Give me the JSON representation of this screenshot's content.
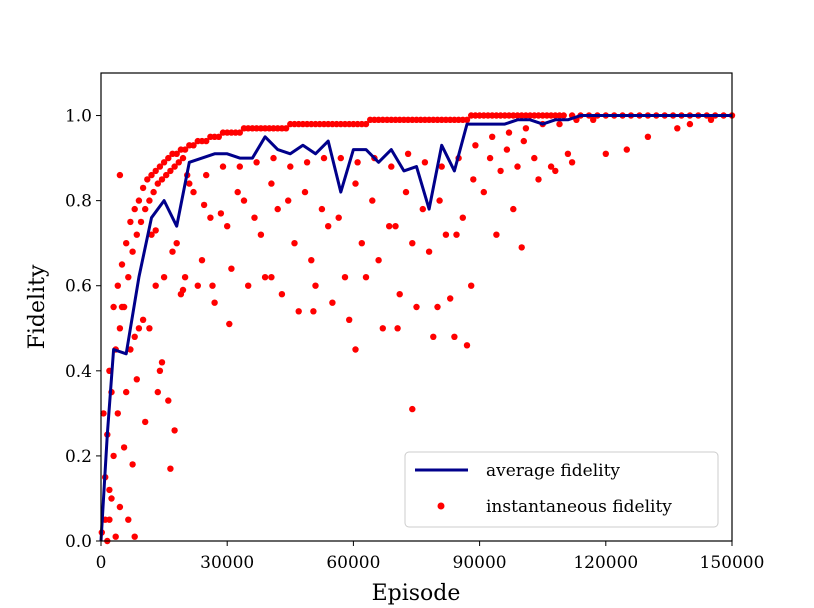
{
  "chart_data": {
    "type": "scatter",
    "title": "",
    "xlabel": "Episode",
    "ylabel": "Fidelity",
    "xlim": [
      0,
      150000
    ],
    "ylim": [
      0,
      1.1
    ],
    "xticks": [
      0,
      30000,
      60000,
      90000,
      120000,
      150000
    ],
    "xtick_labels": [
      "0",
      "30000",
      "60000",
      "90000",
      "120000",
      "150000"
    ],
    "yticks": [
      0,
      0.2,
      0.4,
      0.6,
      0.8,
      1.0
    ],
    "ytick_labels": [
      "0.0",
      "0.2",
      "0.4",
      "0.6",
      "0.8",
      "1.0"
    ],
    "grid": false,
    "legend_position": "lower-right",
    "series": [
      {
        "name": "average fidelity",
        "kind": "line",
        "color": "#00008b",
        "x": [
          0,
          1500,
          3000,
          6000,
          9000,
          12000,
          15000,
          18000,
          21000,
          24000,
          27000,
          30000,
          33000,
          36000,
          39000,
          42000,
          45000,
          48000,
          51000,
          54000,
          57000,
          60000,
          63000,
          66000,
          69000,
          72000,
          75000,
          78000,
          81000,
          84000,
          87000,
          90000,
          93000,
          96000,
          99000,
          102000,
          105000,
          108000,
          111000,
          114000,
          117000,
          120000,
          123000,
          126000,
          129000,
          132000,
          135000,
          138000,
          141000,
          144000,
          147000,
          150000
        ],
        "y": [
          0.0,
          0.25,
          0.45,
          0.44,
          0.62,
          0.76,
          0.8,
          0.74,
          0.89,
          0.9,
          0.91,
          0.91,
          0.9,
          0.9,
          0.95,
          0.92,
          0.91,
          0.93,
          0.91,
          0.94,
          0.82,
          0.92,
          0.92,
          0.89,
          0.92,
          0.87,
          0.88,
          0.78,
          0.93,
          0.87,
          0.98,
          0.98,
          0.98,
          0.98,
          0.99,
          0.99,
          0.98,
          0.99,
          0.99,
          1.0,
          1.0,
          1.0,
          1.0,
          1.0,
          1.0,
          1.0,
          1.0,
          1.0,
          1.0,
          1.0,
          1.0,
          1.0
        ]
      },
      {
        "name": "instantaneous fidelity",
        "kind": "scatter",
        "color": "#ff0000",
        "x": [
          200,
          600,
          1000,
          1500,
          2000,
          2500,
          3000,
          3500,
          4000,
          4500,
          5000,
          5500,
          6000,
          6500,
          7000,
          7500,
          8000,
          8500,
          9000,
          9500,
          10000,
          10500,
          11000,
          11500,
          12000,
          12500,
          13000,
          13500,
          14000,
          14500,
          15000,
          15500,
          16000,
          16500,
          17000,
          17500,
          18000,
          18500,
          19000,
          19500,
          20000,
          21000,
          22000,
          23000,
          24000,
          25000,
          26000,
          27000,
          28000,
          29000,
          30000,
          31000,
          32000,
          33000,
          34000,
          35000,
          36000,
          37000,
          38000,
          39000,
          40000,
          41000,
          42000,
          43000,
          44000,
          45000,
          46000,
          47000,
          48000,
          49000,
          50000,
          51000,
          52000,
          53000,
          54000,
          55000,
          56000,
          57000,
          58000,
          59000,
          60000,
          61000,
          62000,
          63000,
          64000,
          65000,
          66000,
          67000,
          68000,
          69000,
          70000,
          71000,
          72000,
          73000,
          74000,
          75000,
          76000,
          77000,
          78000,
          79000,
          80000,
          81000,
          82000,
          83000,
          84000,
          85000,
          86000,
          87000,
          88000,
          89000,
          90000,
          91000,
          92000,
          93000,
          94000,
          95000,
          96000,
          97000,
          98000,
          99000,
          100000,
          101000,
          102000,
          103000,
          104000,
          105000,
          106000,
          107000,
          108000,
          109000,
          110000,
          112000,
          114000,
          116000,
          118000,
          120000,
          122000,
          124000,
          126000,
          128000,
          130000,
          132000,
          134000,
          136000,
          138000,
          140000,
          142000,
          144000,
          146000,
          148000,
          150000,
          5000,
          8000,
          12000,
          15000,
          18000,
          22000,
          26000,
          30000,
          34000,
          38000,
          42000,
          46000,
          50000,
          54000,
          58000,
          62000,
          66000,
          70000,
          74000,
          78000,
          82000,
          86000,
          3000,
          6000,
          9000,
          13000,
          17000,
          21000,
          25000,
          29000,
          33000,
          37000,
          41000,
          45000,
          49000,
          53000,
          57000,
          61000,
          65000,
          69000,
          73000,
          77000,
          81000,
          85000,
          89000,
          93000,
          97000,
          101000,
          105000,
          109000,
          113000,
          117000,
          1000,
          2000,
          4000,
          7000,
          10000,
          14000,
          16000,
          19000,
          23000,
          27000,
          31000,
          35000,
          39000,
          43000,
          47000,
          51000,
          55000,
          59000,
          63000,
          67000,
          71000,
          75000,
          79000,
          83000,
          87000,
          91000,
          95000,
          99000,
          103000,
          107000,
          111000,
          2500,
          5500,
          8500,
          11500,
          14500,
          17500,
          20500,
          24500,
          28500,
          32500,
          36500,
          40500,
          44500,
          48500,
          52500,
          56500,
          60500,
          64500,
          68500,
          72500,
          76500,
          80500,
          84500,
          88500,
          92500,
          96500,
          100500,
          1500,
          4500,
          7500,
          10500,
          13500,
          16500,
          19500,
          26500,
          30500,
          40500,
          50500,
          60500,
          70500,
          74000,
          80000,
          84000,
          88000,
          94000,
          98000,
          100000,
          104000,
          108000,
          112000,
          120000,
          125000,
          130000,
          137000,
          140000,
          145000,
          4500,
          2000,
          8000,
          24000,
          13000,
          20000,
          3500,
          6500
        ],
        "y": [
          0.02,
          0.3,
          0.15,
          0.25,
          0.4,
          0.35,
          0.55,
          0.45,
          0.6,
          0.5,
          0.65,
          0.55,
          0.7,
          0.62,
          0.75,
          0.68,
          0.78,
          0.72,
          0.8,
          0.75,
          0.83,
          0.78,
          0.85,
          0.8,
          0.86,
          0.82,
          0.87,
          0.84,
          0.88,
          0.85,
          0.89,
          0.86,
          0.9,
          0.87,
          0.91,
          0.88,
          0.91,
          0.89,
          0.92,
          0.9,
          0.92,
          0.93,
          0.93,
          0.94,
          0.94,
          0.94,
          0.95,
          0.95,
          0.95,
          0.96,
          0.96,
          0.96,
          0.96,
          0.96,
          0.97,
          0.97,
          0.97,
          0.97,
          0.97,
          0.97,
          0.97,
          0.97,
          0.97,
          0.97,
          0.97,
          0.98,
          0.98,
          0.98,
          0.98,
          0.98,
          0.98,
          0.98,
          0.98,
          0.98,
          0.98,
          0.98,
          0.98,
          0.98,
          0.98,
          0.98,
          0.98,
          0.98,
          0.98,
          0.98,
          0.99,
          0.99,
          0.99,
          0.99,
          0.99,
          0.99,
          0.99,
          0.99,
          0.99,
          0.99,
          0.99,
          0.99,
          0.99,
          0.99,
          0.99,
          0.99,
          0.99,
          0.99,
          0.99,
          0.99,
          0.99,
          0.99,
          0.99,
          0.99,
          1.0,
          1.0,
          1.0,
          1.0,
          1.0,
          1.0,
          1.0,
          1.0,
          1.0,
          1.0,
          1.0,
          1.0,
          1.0,
          1.0,
          1.0,
          1.0,
          1.0,
          1.0,
          1.0,
          1.0,
          1.0,
          1.0,
          1.0,
          1.0,
          1.0,
          1.0,
          1.0,
          1.0,
          1.0,
          1.0,
          1.0,
          1.0,
          1.0,
          1.0,
          1.0,
          1.0,
          1.0,
          1.0,
          1.0,
          1.0,
          1.0,
          1.0,
          1.0,
          0.55,
          0.48,
          0.72,
          0.62,
          0.7,
          0.82,
          0.76,
          0.74,
          0.8,
          0.72,
          0.78,
          0.7,
          0.66,
          0.74,
          0.62,
          0.7,
          0.66,
          0.74,
          0.7,
          0.68,
          0.72,
          0.76,
          0.2,
          0.35,
          0.5,
          0.6,
          0.68,
          0.84,
          0.86,
          0.88,
          0.88,
          0.89,
          0.9,
          0.88,
          0.89,
          0.9,
          0.9,
          0.89,
          0.9,
          0.88,
          0.91,
          0.89,
          0.88,
          0.9,
          0.93,
          0.95,
          0.96,
          0.97,
          0.98,
          0.98,
          0.99,
          0.99,
          0.05,
          0.12,
          0.3,
          0.45,
          0.52,
          0.4,
          0.33,
          0.58,
          0.6,
          0.56,
          0.64,
          0.6,
          0.62,
          0.58,
          0.54,
          0.6,
          0.56,
          0.52,
          0.62,
          0.5,
          0.58,
          0.55,
          0.48,
          0.57,
          0.46,
          0.82,
          0.87,
          0.88,
          0.9,
          0.88,
          0.91,
          0.1,
          0.22,
          0.38,
          0.5,
          0.42,
          0.26,
          0.86,
          0.79,
          0.77,
          0.82,
          0.76,
          0.84,
          0.8,
          0.82,
          0.78,
          0.76,
          0.84,
          0.8,
          0.74,
          0.82,
          0.78,
          0.8,
          0.72,
          0.85,
          0.9,
          0.92,
          0.94,
          0.0,
          0.08,
          0.18,
          0.28,
          0.35,
          0.17,
          0.59,
          0.6,
          0.51,
          0.62,
          0.54,
          0.45,
          0.5,
          0.31,
          0.55,
          0.48,
          0.6,
          0.72,
          0.78,
          0.69,
          0.85,
          0.87,
          0.89,
          0.91,
          0.92,
          0.95,
          0.97,
          0.98,
          0.99,
          0.86,
          0.05,
          0.01,
          0.66,
          0.73,
          0.62,
          0.01,
          0.05
        ]
      }
    ]
  }
}
